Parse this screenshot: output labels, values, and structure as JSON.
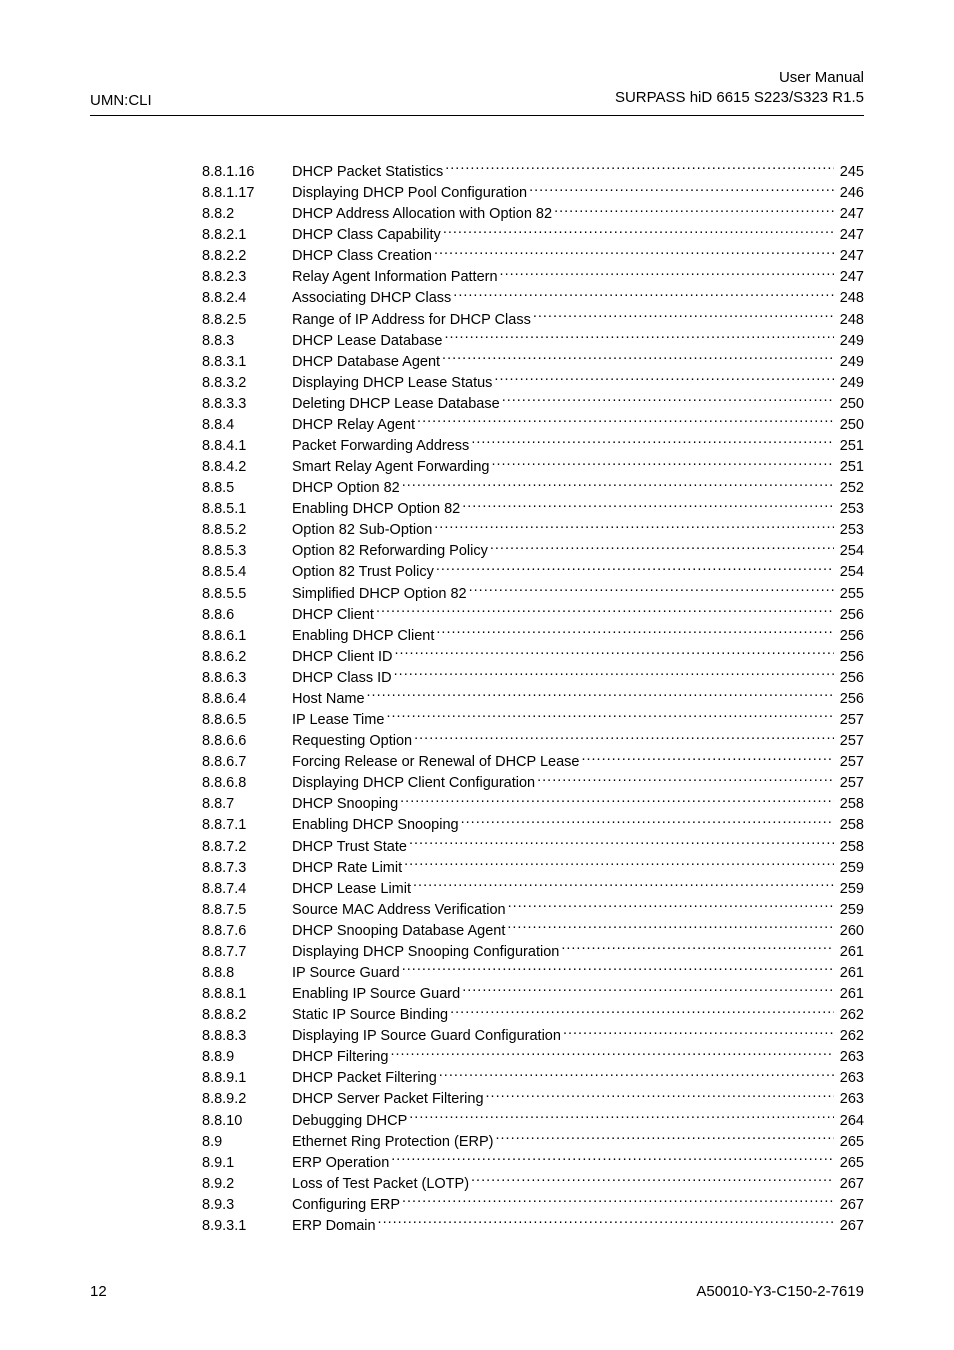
{
  "header": {
    "left": "UMN:CLI",
    "right_line1": "User Manual",
    "right_line2": "SURPASS hiD 6615 S223/S323 R1.5"
  },
  "footer": {
    "page_number": "12",
    "doc_code": "A50010-Y3-C150-2-7619"
  },
  "toc": [
    {
      "num": "8.8.1.16",
      "title": "DHCP Packet Statistics",
      "page": "245"
    },
    {
      "num": "8.8.1.17",
      "title": "Displaying DHCP Pool Configuration",
      "page": "246"
    },
    {
      "num": "8.8.2",
      "title": "DHCP Address Allocation with Option 82",
      "page": "247"
    },
    {
      "num": "8.8.2.1",
      "title": "DHCP Class Capability",
      "page": "247"
    },
    {
      "num": "8.8.2.2",
      "title": "DHCP Class Creation",
      "page": "247"
    },
    {
      "num": "8.8.2.3",
      "title": "Relay Agent Information Pattern",
      "page": "247"
    },
    {
      "num": "8.8.2.4",
      "title": "Associating DHCP Class",
      "page": "248"
    },
    {
      "num": "8.8.2.5",
      "title": "Range of IP Address for DHCP Class",
      "page": "248"
    },
    {
      "num": "8.8.3",
      "title": "DHCP Lease Database",
      "page": "249"
    },
    {
      "num": "8.8.3.1",
      "title": "DHCP Database Agent",
      "page": "249"
    },
    {
      "num": "8.8.3.2",
      "title": "Displaying DHCP Lease Status",
      "page": "249"
    },
    {
      "num": "8.8.3.3",
      "title": "Deleting DHCP Lease Database",
      "page": "250"
    },
    {
      "num": "8.8.4",
      "title": "DHCP Relay Agent",
      "page": "250"
    },
    {
      "num": "8.8.4.1",
      "title": "Packet Forwarding Address",
      "page": "251"
    },
    {
      "num": "8.8.4.2",
      "title": "Smart Relay Agent Forwarding",
      "page": "251"
    },
    {
      "num": "8.8.5",
      "title": "DHCP Option 82",
      "page": "252"
    },
    {
      "num": "8.8.5.1",
      "title": "Enabling DHCP Option 82",
      "page": "253"
    },
    {
      "num": "8.8.5.2",
      "title": "Option 82 Sub-Option",
      "page": "253"
    },
    {
      "num": "8.8.5.3",
      "title": "Option 82 Reforwarding Policy",
      "page": "254"
    },
    {
      "num": "8.8.5.4",
      "title": "Option 82 Trust Policy",
      "page": "254"
    },
    {
      "num": "8.8.5.5",
      "title": "Simplified DHCP Option 82",
      "page": "255"
    },
    {
      "num": "8.8.6",
      "title": "DHCP Client",
      "page": "256"
    },
    {
      "num": "8.8.6.1",
      "title": "Enabling DHCP Client",
      "page": "256"
    },
    {
      "num": "8.8.6.2",
      "title": "DHCP Client ID",
      "page": "256"
    },
    {
      "num": "8.8.6.3",
      "title": "DHCP Class ID",
      "page": "256"
    },
    {
      "num": "8.8.6.4",
      "title": "Host Name",
      "page": "256"
    },
    {
      "num": "8.8.6.5",
      "title": "IP Lease Time",
      "page": "257"
    },
    {
      "num": "8.8.6.6",
      "title": "Requesting Option",
      "page": "257"
    },
    {
      "num": "8.8.6.7",
      "title": "Forcing Release or Renewal of DHCP Lease",
      "page": "257"
    },
    {
      "num": "8.8.6.8",
      "title": "Displaying DHCP Client Configuration",
      "page": "257"
    },
    {
      "num": "8.8.7",
      "title": "DHCP Snooping",
      "page": "258"
    },
    {
      "num": "8.8.7.1",
      "title": "Enabling DHCP Snooping",
      "page": "258"
    },
    {
      "num": "8.8.7.2",
      "title": "DHCP Trust State",
      "page": "258"
    },
    {
      "num": "8.8.7.3",
      "title": "DHCP Rate Limit",
      "page": "259"
    },
    {
      "num": "8.8.7.4",
      "title": "DHCP Lease Limit",
      "page": "259"
    },
    {
      "num": "8.8.7.5",
      "title": "Source MAC Address Verification",
      "page": "259"
    },
    {
      "num": "8.8.7.6",
      "title": "DHCP Snooping Database Agent",
      "page": "260"
    },
    {
      "num": "8.8.7.7",
      "title": "Displaying DHCP Snooping Configuration",
      "page": "261"
    },
    {
      "num": "8.8.8",
      "title": "IP Source Guard",
      "page": "261"
    },
    {
      "num": "8.8.8.1",
      "title": "Enabling IP Source Guard",
      "page": "261"
    },
    {
      "num": "8.8.8.2",
      "title": "Static IP Source Binding",
      "page": "262"
    },
    {
      "num": "8.8.8.3",
      "title": "Displaying IP Source Guard Configuration",
      "page": "262"
    },
    {
      "num": "8.8.9",
      "title": "DHCP Filtering",
      "page": "263"
    },
    {
      "num": "8.8.9.1",
      "title": "DHCP Packet Filtering",
      "page": "263"
    },
    {
      "num": "8.8.9.2",
      "title": "DHCP Server Packet Filtering",
      "page": "263"
    },
    {
      "num": "8.8.10",
      "title": "Debugging DHCP",
      "page": "264"
    },
    {
      "num": "8.9",
      "title": "Ethernet Ring Protection (ERP)",
      "page": "265"
    },
    {
      "num": "8.9.1",
      "title": "ERP Operation",
      "page": "265"
    },
    {
      "num": "8.9.2",
      "title": "Loss of Test Packet (LOTP)",
      "page": "267"
    },
    {
      "num": "8.9.3",
      "title": "Configuring ERP",
      "page": "267"
    },
    {
      "num": "8.9.3.1",
      "title": "ERP Domain",
      "page": "267"
    }
  ]
}
